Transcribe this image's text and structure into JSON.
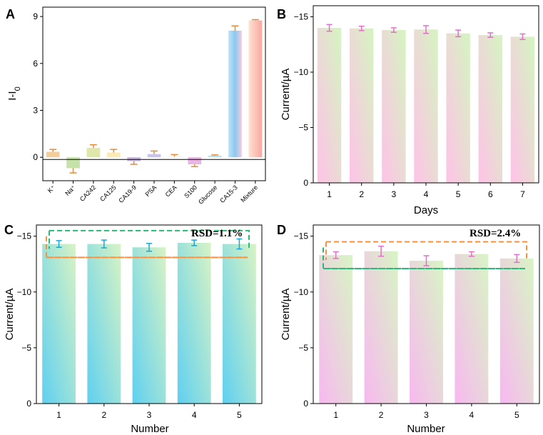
{
  "chart_data": [
    {
      "panel": "A",
      "type": "bar",
      "title": "",
      "xlabel": "",
      "ylabel": "I-I0",
      "ylim": [
        -1.5,
        9.6
      ],
      "yticks": [
        0,
        3,
        6,
        9
      ],
      "categories": [
        "K⁺",
        "Na⁺",
        "CA242",
        "CA125",
        "CA19-9",
        "PSA",
        "CEA",
        "S100",
        "Glucose",
        "CA15-3",
        "Mixture"
      ],
      "values": [
        0.35,
        -0.7,
        0.6,
        0.3,
        -0.25,
        0.2,
        0.05,
        -0.45,
        0.1,
        8.1,
        8.75
      ],
      "errors": [
        0.15,
        0.3,
        0.2,
        0.2,
        0.2,
        0.2,
        0.12,
        0.15,
        0.05,
        0.3,
        0.05
      ],
      "colors": [
        "#f3cd9a",
        "#c5e3a8",
        "#dfe8a8",
        "#fde9b3",
        "#c9b7de",
        "#c8c3ea",
        "#f8f0dd",
        "#e9b5e5",
        "#bde0e8",
        "#a3d3f2",
        "#fbbdb1"
      ]
    },
    {
      "panel": "B",
      "type": "bar",
      "title": "",
      "xlabel": "Days",
      "ylabel": "Current/µA",
      "ylim": [
        0,
        -16
      ],
      "yticks": [
        0,
        -5,
        -10,
        -15
      ],
      "categories": [
        "1",
        "2",
        "3",
        "4",
        "5",
        "6",
        "7"
      ],
      "values": [
        -14.0,
        -13.95,
        -13.8,
        -13.85,
        -13.5,
        -13.35,
        -13.2
      ],
      "errors": [
        0.3,
        0.2,
        0.2,
        0.35,
        0.3,
        0.2,
        0.25
      ],
      "gradient": [
        "#ffc2e8",
        "#d4f5c0"
      ],
      "error_color": "#e070c8"
    },
    {
      "panel": "C",
      "type": "bar",
      "title": "",
      "xlabel": "Number",
      "ylabel": "Current/µA",
      "ylim": [
        0,
        -16
      ],
      "yticks": [
        0,
        -5,
        -10,
        -15
      ],
      "categories": [
        "1",
        "2",
        "3",
        "4",
        "5"
      ],
      "values": [
        -14.3,
        -14.3,
        -14.0,
        -14.4,
        -14.3
      ],
      "errors": [
        0.3,
        0.35,
        0.35,
        0.25,
        0.45
      ],
      "gradient": [
        "#5fd0f0",
        "#d8f3c4"
      ],
      "error_color": "#1aa6dc",
      "annotation": "RSD=1.1%",
      "box_values": [
        -15.5,
        -13.1
      ]
    },
    {
      "panel": "D",
      "type": "bar",
      "title": "",
      "xlabel": "Number",
      "ylabel": "Current/µA",
      "ylim": [
        0,
        -16
      ],
      "yticks": [
        0,
        -5,
        -10,
        -15
      ],
      "categories": [
        "1",
        "2",
        "3",
        "4",
        "5"
      ],
      "values": [
        -13.3,
        -13.65,
        -12.8,
        -13.4,
        -13.0
      ],
      "errors": [
        0.3,
        0.45,
        0.45,
        0.2,
        0.35
      ],
      "gradient": [
        "#f8b8f0",
        "#d8f5c4"
      ],
      "error_color": "#e070c8",
      "annotation": "RSD=2.4%",
      "box_values": [
        -14.5,
        -12.1
      ]
    }
  ]
}
